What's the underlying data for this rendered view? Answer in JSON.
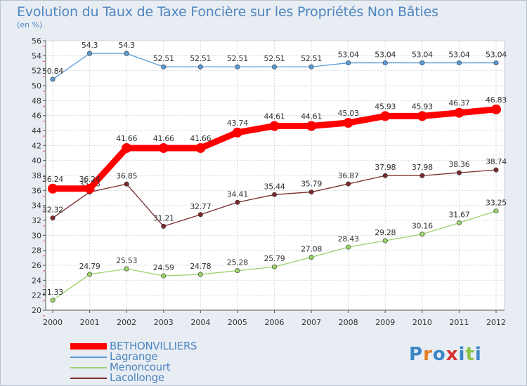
{
  "chart_data": {
    "type": "line",
    "title": "Evolution du Taux de Taxe Foncière sur les Propriétés Non Bâties",
    "ylabel": "(en %)",
    "xlabel": "",
    "x": [
      2000,
      2001,
      2002,
      2003,
      2004,
      2005,
      2006,
      2007,
      2008,
      2009,
      2010,
      2011,
      2012
    ],
    "ylim": [
      20,
      56
    ],
    "yticks": [
      20,
      22,
      24,
      26,
      28,
      30,
      32,
      34,
      36,
      38,
      40,
      42,
      44,
      46,
      48,
      50,
      52,
      54,
      56
    ],
    "grid": true,
    "series": [
      {
        "name": "BETHONVILLIERS",
        "color": "#ff0000",
        "emphasis": true,
        "values": [
          36.24,
          36.24,
          41.66,
          41.66,
          41.66,
          43.74,
          44.61,
          44.61,
          45.03,
          45.93,
          45.93,
          46.37,
          46.83
        ],
        "labels": [
          "36.24",
          "36.24",
          "41.66",
          "41.66",
          "41.66",
          "43.74",
          "44.61",
          "44.61",
          "45.03",
          "45.93",
          "45.93",
          "46.37",
          "46.83"
        ]
      },
      {
        "name": "Lagrange",
        "color": "#5b9bd5",
        "values": [
          50.84,
          54.3,
          54.3,
          52.51,
          52.51,
          52.51,
          52.51,
          52.51,
          53.04,
          53.04,
          53.04,
          53.04,
          53.04
        ],
        "labels": [
          "50.84",
          "54.3",
          "54.3",
          "52.51",
          "52.51",
          "52.51",
          "52.51",
          "52.51",
          "53.04",
          "53.04",
          "53.04",
          "53.04",
          "53.04"
        ]
      },
      {
        "name": "Menoncourt",
        "color": "#99d36a",
        "values": [
          21.33,
          24.79,
          25.53,
          24.59,
          24.78,
          25.28,
          25.79,
          27.08,
          28.43,
          29.28,
          30.16,
          31.67,
          33.25
        ],
        "labels": [
          "21.33",
          "24.79",
          "25.53",
          "24.59",
          "24.78",
          "25.28",
          "25.79",
          "27.08",
          "28.43",
          "29.28",
          "30.16",
          "31.67",
          "33.25"
        ]
      },
      {
        "name": "Lacollonge",
        "color": "#7b2b2b",
        "values": [
          32.32,
          35.78,
          36.85,
          31.21,
          32.77,
          34.41,
          35.44,
          35.79,
          36.87,
          37.98,
          37.98,
          38.36,
          38.74
        ],
        "labels": [
          "32.32",
          "35.78",
          "36.85",
          "31.21",
          "32.77",
          "34.41",
          "35.44",
          "35.79",
          "36.87",
          "37.98",
          "37.98",
          "38.36",
          "38.74"
        ]
      }
    ],
    "legend": "bottom-left"
  },
  "logo": {
    "letters": [
      "P",
      "r",
      "o",
      "x",
      "i",
      "t",
      "i"
    ],
    "colors": [
      "#3a86c8",
      "#e67e22",
      "#3a86c8",
      "#d63031",
      "#3a86c8",
      "#8bc34a",
      "#3a86c8"
    ]
  }
}
